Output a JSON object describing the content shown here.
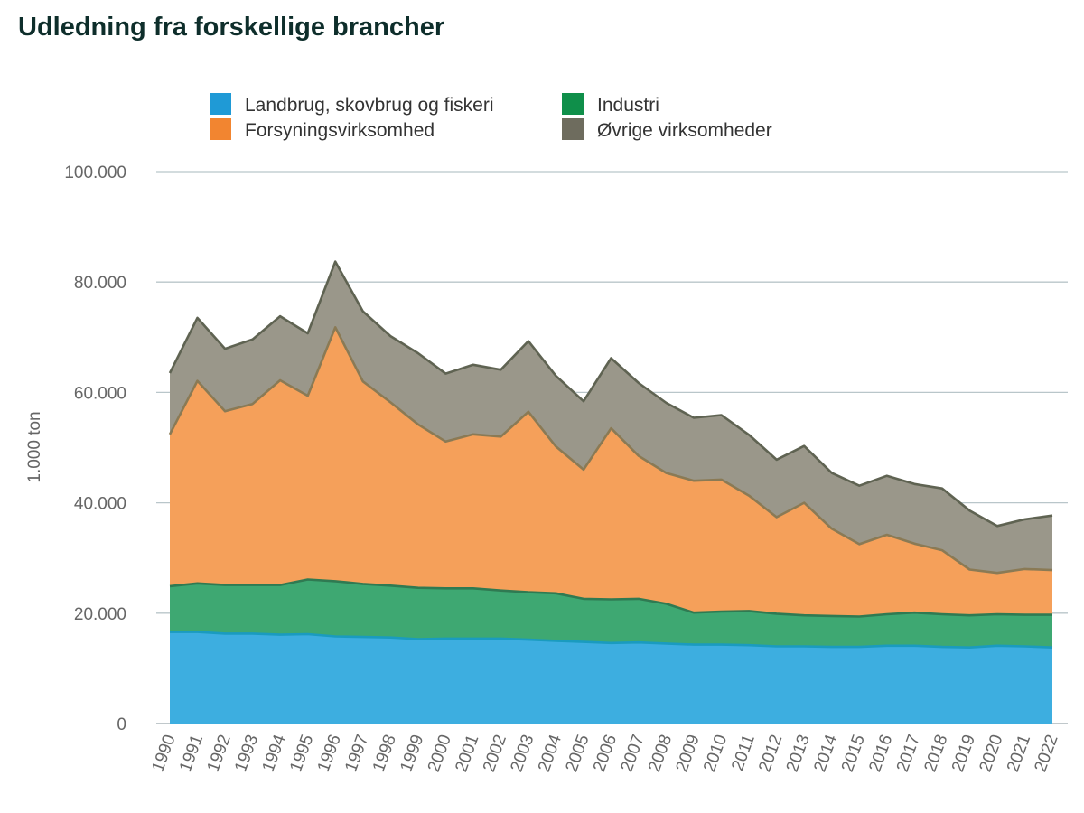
{
  "title": "Udledning fra forskellige brancher",
  "chart_data": {
    "type": "area",
    "stacked": true,
    "title": "Udledning fra forskellige brancher",
    "xlabel": "",
    "ylabel": "1.000 ton",
    "x": [
      "1990",
      "1991",
      "1992",
      "1993",
      "1994",
      "1995",
      "1996",
      "1997",
      "1998",
      "1999",
      "2000",
      "2001",
      "2002",
      "2003",
      "2004",
      "2005",
      "2006",
      "2007",
      "2008",
      "2009",
      "2010",
      "2011",
      "2012",
      "2013",
      "2014",
      "2015",
      "2016",
      "2017",
      "2018",
      "2019",
      "2020",
      "2021",
      "2022"
    ],
    "ylim": [
      0,
      100000
    ],
    "yticks": [
      0,
      20000,
      40000,
      60000,
      80000,
      100000
    ],
    "ytick_labels": [
      "0",
      "20.000",
      "40.000",
      "60.000",
      "80.000",
      "100.000"
    ],
    "grid": true,
    "legend_position": "top",
    "series": [
      {
        "name": "Landbrug, skovbrug og fiskeri",
        "color": "#3daee0",
        "line_color": "#1a9bbf",
        "legend_color": "#1f9ad6",
        "values": [
          16600,
          16600,
          16300,
          16300,
          16100,
          16200,
          15800,
          15700,
          15600,
          15300,
          15400,
          15400,
          15400,
          15200,
          15000,
          14800,
          14600,
          14700,
          14500,
          14300,
          14300,
          14200,
          14000,
          14000,
          13900,
          13900,
          14100,
          14100,
          13900,
          13800,
          14100,
          14000,
          13800
        ]
      },
      {
        "name": "Industri",
        "color": "#3ea872",
        "line_color": "#2f7a52",
        "legend_color": "#0f8f4a",
        "values": [
          8300,
          8800,
          8800,
          8800,
          9000,
          9900,
          10000,
          9600,
          9400,
          9300,
          9100,
          9100,
          8700,
          8600,
          8600,
          7800,
          7900,
          7900,
          7200,
          5800,
          6000,
          6200,
          5900,
          5600,
          5600,
          5500,
          5700,
          6000,
          5900,
          5800,
          5700,
          5700,
          5900
        ]
      },
      {
        "name": "Forsyningsvirksomhed",
        "color": "#f5a05a",
        "line_color": "#8a7a55",
        "legend_color": "#f28530",
        "values": [
          27500,
          36700,
          31500,
          32800,
          37100,
          33300,
          46000,
          36700,
          33200,
          29600,
          26600,
          27900,
          27900,
          32700,
          26600,
          23400,
          31000,
          25900,
          23700,
          23900,
          23900,
          20900,
          17500,
          20400,
          15800,
          13100,
          14400,
          12500,
          11600,
          8300,
          7500,
          8300,
          8100
        ]
      },
      {
        "name": "Øvrige virksomheder",
        "color": "#9a978a",
        "line_color": "#5f6352",
        "legend_color": "#6e6c5e",
        "values": [
          11100,
          11400,
          11300,
          11700,
          11600,
          11300,
          11900,
          12700,
          12000,
          12900,
          12300,
          12600,
          12100,
          12800,
          12800,
          12400,
          12700,
          13200,
          12700,
          11400,
          11700,
          11000,
          10400,
          10300,
          10100,
          10600,
          10700,
          10800,
          11200,
          10700,
          8500,
          9000,
          9900
        ]
      }
    ]
  }
}
